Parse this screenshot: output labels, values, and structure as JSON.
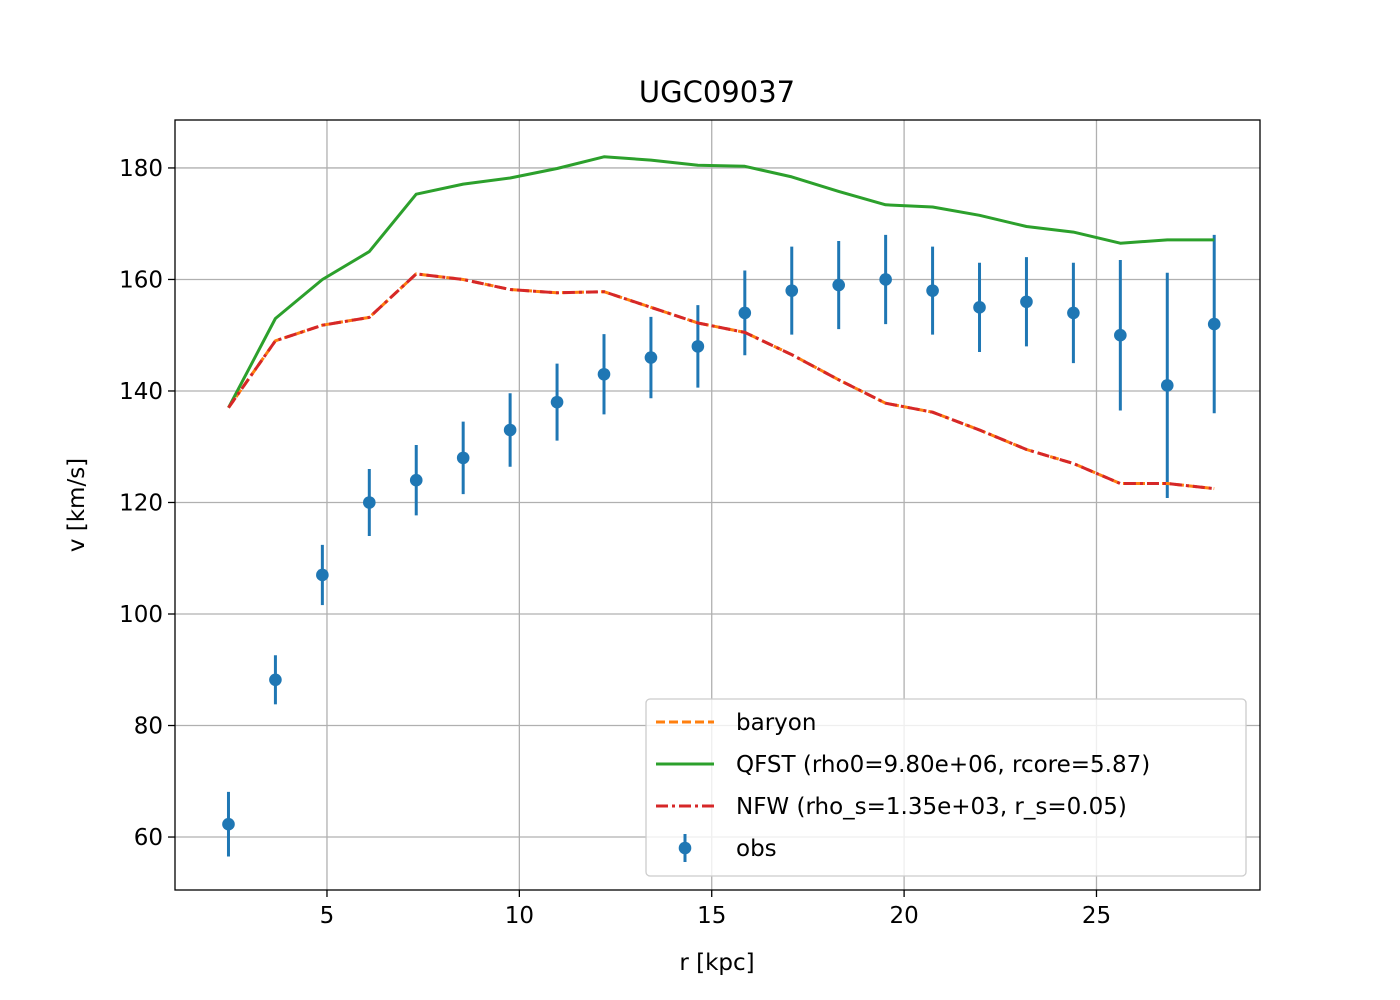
{
  "chart_data": {
    "type": "line",
    "title": "UGC09037",
    "xlabel": "r [kpc]",
    "ylabel": "v [km/s]",
    "xlim": [
      1.05,
      29.25
    ],
    "ylim": [
      50.5,
      188.6
    ],
    "xticks": [
      5,
      10,
      15,
      20,
      25
    ],
    "yticks": [
      60,
      80,
      100,
      120,
      140,
      160,
      180
    ],
    "grid": true,
    "legend_position": "lower right",
    "x": [
      2.44,
      3.66,
      4.88,
      6.1,
      7.32,
      8.54,
      9.76,
      10.98,
      12.2,
      13.42,
      14.64,
      15.86,
      17.08,
      18.3,
      19.52,
      20.74,
      21.96,
      23.18,
      24.4,
      25.62,
      26.84,
      28.06
    ],
    "series": [
      {
        "name": "baryon",
        "kind": "line",
        "style": "dashed",
        "color": "#ff7f0e",
        "values": [
          137.0,
          149.0,
          151.8,
          153.2,
          161.0,
          160.0,
          158.2,
          157.6,
          157.8,
          155.0,
          152.2,
          150.5,
          146.5,
          142.0,
          137.8,
          136.2,
          133.0,
          129.5,
          127.0,
          123.4,
          123.4,
          122.5
        ]
      },
      {
        "name": "QFST (rho0=9.80e+06, rcore=5.87)",
        "kind": "line",
        "style": "solid",
        "color": "#2ca02c",
        "values": [
          137.0,
          153.0,
          160.0,
          165.0,
          175.3,
          177.1,
          178.2,
          179.9,
          182.0,
          181.4,
          180.5,
          180.3,
          178.4,
          175.8,
          173.4,
          173.0,
          171.5,
          169.5,
          168.5,
          166.5,
          167.1,
          167.1
        ]
      },
      {
        "name": "NFW (rho_s=1.35e+03, r_s=0.05)",
        "kind": "line",
        "style": "dashdot",
        "color": "#d62728",
        "values": [
          137.0,
          149.0,
          151.8,
          153.2,
          161.0,
          160.0,
          158.2,
          157.6,
          157.8,
          155.0,
          152.2,
          150.5,
          146.5,
          142.0,
          137.8,
          136.2,
          133.0,
          129.5,
          127.0,
          123.4,
          123.4,
          122.5
        ]
      },
      {
        "name": "obs",
        "kind": "errorbar",
        "color": "#1f77b4",
        "values": [
          62.3,
          88.2,
          107.0,
          120.0,
          124.0,
          128.0,
          133.0,
          138.0,
          143.0,
          146.0,
          148.0,
          154.0,
          158.0,
          159.0,
          160.0,
          158.0,
          155.0,
          156.0,
          154.0,
          150.0,
          141.0,
          152.0
        ],
        "errors": [
          5.8,
          4.4,
          5.4,
          6.0,
          6.3,
          6.5,
          6.6,
          6.9,
          7.2,
          7.3,
          7.4,
          7.6,
          7.9,
          7.9,
          8.0,
          7.9,
          8.0,
          8.0,
          9.0,
          13.5,
          20.2,
          16.0
        ]
      }
    ]
  }
}
